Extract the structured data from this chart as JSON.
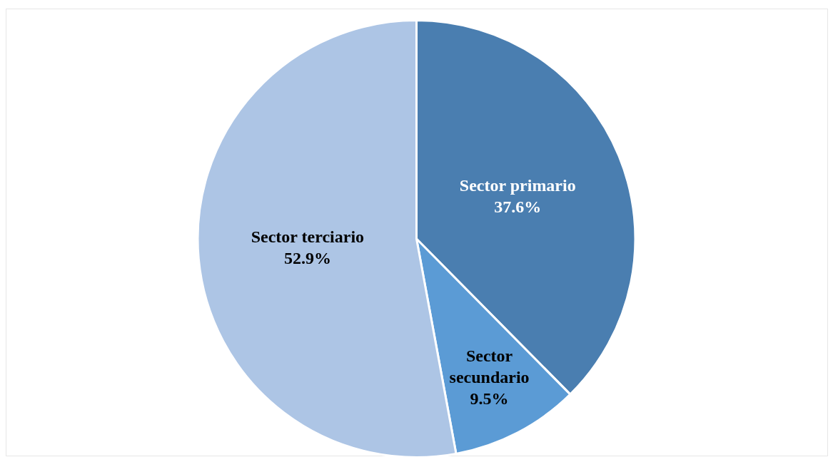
{
  "chart_data": {
    "type": "pie",
    "categories": [
      "Sector primario",
      "Sector secundario",
      "Sector terciario"
    ],
    "values": [
      37.6,
      9.5,
      52.9
    ],
    "colors": [
      "#4a7eb0",
      "#5b9bd5",
      "#adc5e5"
    ],
    "value_labels": [
      "37.6%",
      "9.5%",
      "52.9%"
    ],
    "legend": false
  }
}
